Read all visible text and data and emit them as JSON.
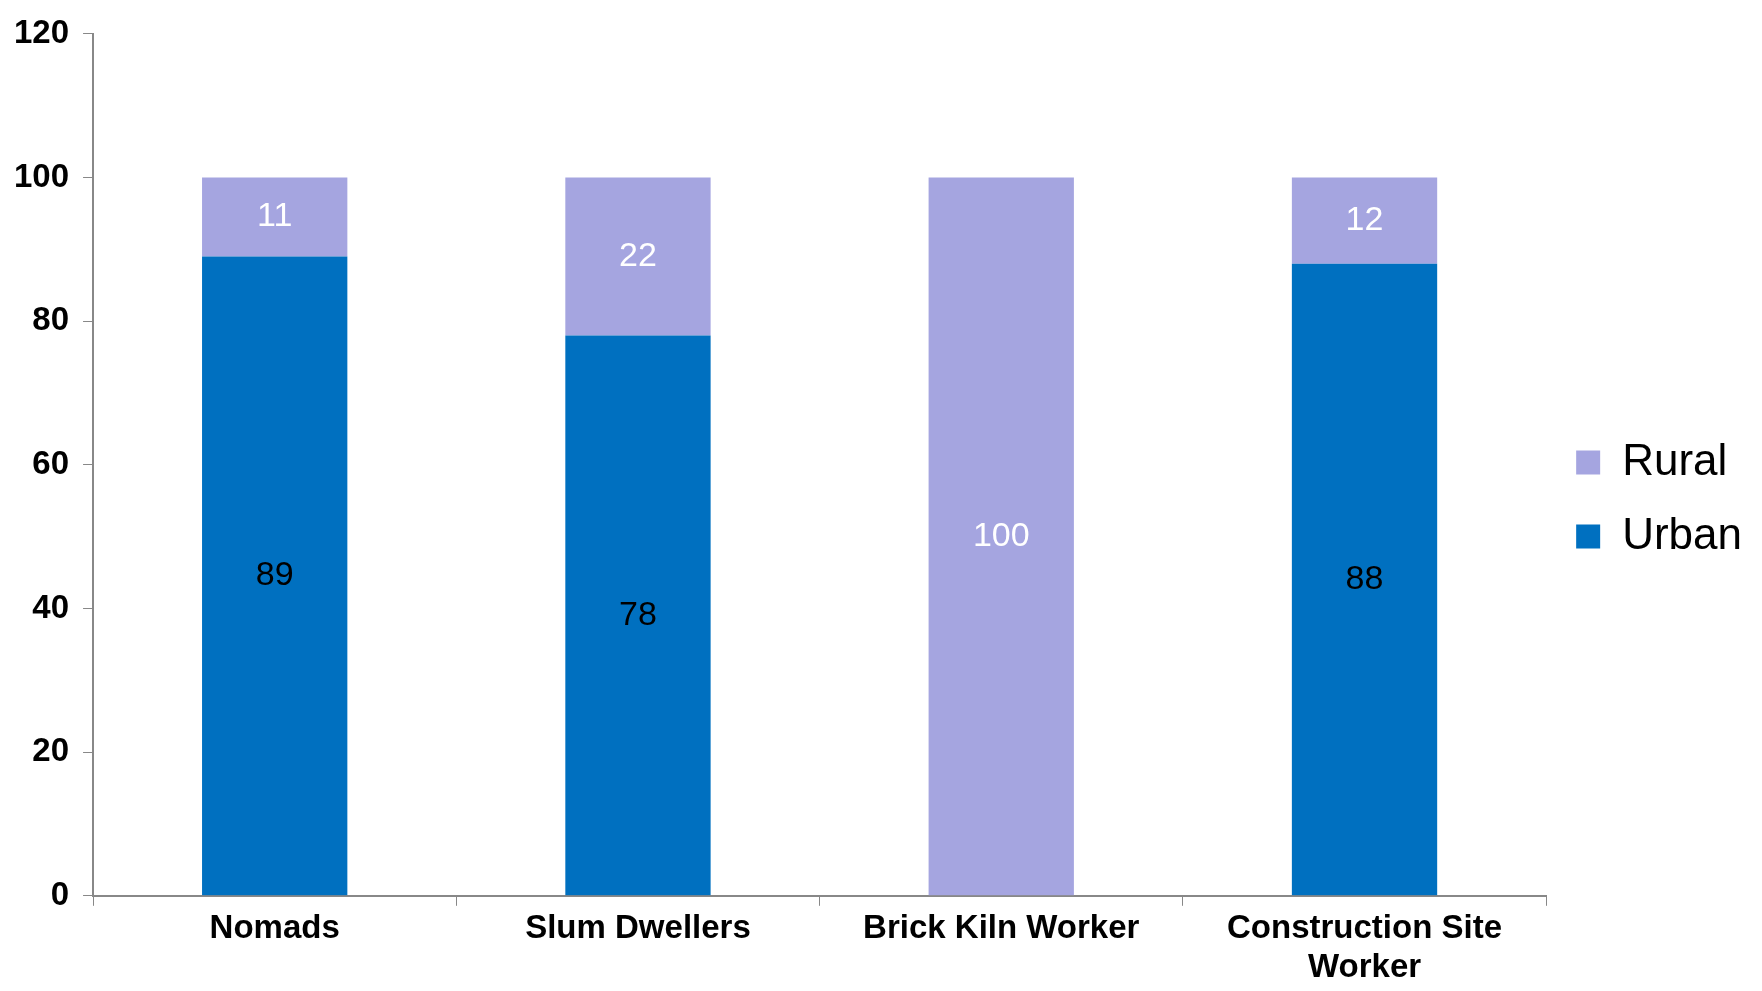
{
  "chart_data": {
    "type": "bar",
    "stacked": true,
    "categories": [
      "Nomads",
      "Slum Dwellers",
      "Brick Kiln Worker",
      "Construction Site Worker"
    ],
    "series": [
      {
        "name": "Urban",
        "color": "#0070c0",
        "values": [
          89,
          78,
          0,
          88
        ],
        "value_labels": [
          "89",
          "78",
          null,
          "88"
        ]
      },
      {
        "name": "Rural",
        "color": "#a5a5e0",
        "values": [
          11,
          22,
          100,
          12
        ],
        "value_labels": [
          "11",
          "22",
          "100",
          "12"
        ]
      }
    ],
    "ylim": [
      0,
      120
    ],
    "yticks": [
      0,
      20,
      40,
      60,
      80,
      100,
      120
    ],
    "grid": false,
    "legend": "right"
  }
}
